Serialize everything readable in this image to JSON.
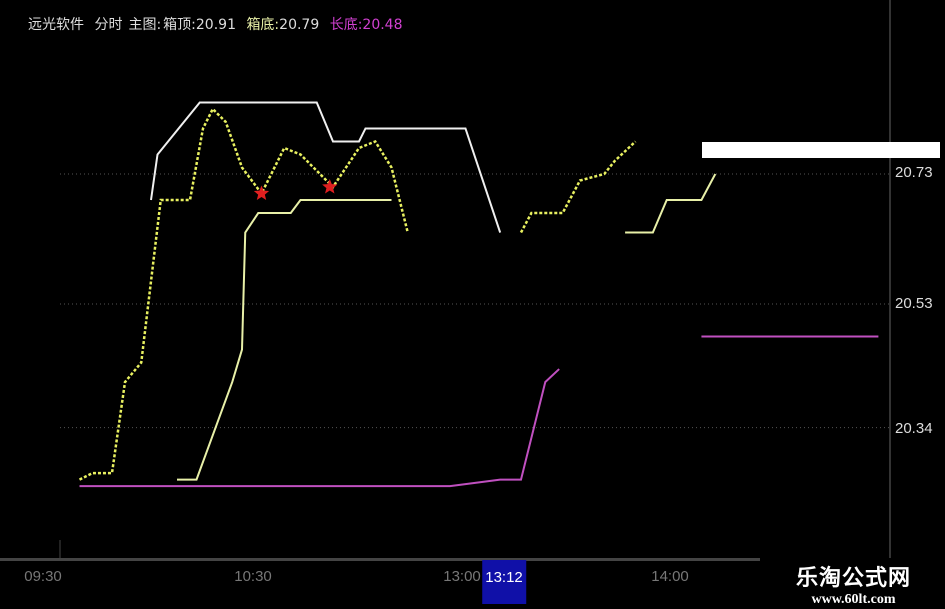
{
  "header": {
    "software": "远光软件",
    "mode": "分时",
    "main_chart_label": "主图:",
    "box_top_label": "箱顶:",
    "box_top_value": "20.91",
    "box_bottom_label": "箱底:",
    "box_bottom_value": "20.79",
    "long_bottom_label": "长底:",
    "long_bottom_value": "20.48"
  },
  "colors": {
    "background": "#000000",
    "box_top": "#f0f0f0",
    "box_bottom": "#e8f0a8",
    "long_bottom": "#c050c0",
    "price": "#e8f060",
    "signal_star": "#e02020",
    "cursor_time_bg": "#1010a8"
  },
  "watermark": {
    "title": "乐淘公式网",
    "url": "www.60lt.com"
  },
  "chart_data": {
    "type": "line",
    "title": "",
    "y_ticks": [
      "20.73",
      "20.53",
      "20.34"
    ],
    "x_ticks": [
      "09:30",
      "10:30",
      "13:00",
      "14:00"
    ],
    "cursor_time": "13:12",
    "grid": "dotted horizontal",
    "series": [
      {
        "name": "箱顶",
        "color": "#f0f0f0",
        "segments": [
          [
            [
              "09:58",
              20.69
            ],
            [
              "10:00",
              20.76
            ],
            [
              "10:13",
              20.84
            ],
            [
              "10:49",
              20.84
            ],
            [
              "10:54",
              20.78
            ],
            [
              "11:02",
              20.78
            ],
            [
              "11:04",
              20.8
            ],
            [
              "11:30",
              20.8
            ],
            [
              "13:01",
              20.8
            ],
            [
              "13:11",
              20.64
            ]
          ]
        ]
      },
      {
        "name": "箱底",
        "color": "#e8f0a8",
        "segments": [
          [
            [
              "10:06",
              20.26
            ],
            [
              "10:12",
              20.26
            ],
            [
              "10:23",
              20.41
            ],
            [
              "10:26",
              20.46
            ],
            [
              "10:27",
              20.64
            ],
            [
              "10:31",
              20.67
            ],
            [
              "10:41",
              20.67
            ],
            [
              "10:44",
              20.69
            ],
            [
              "11:12",
              20.69
            ]
          ],
          [
            [
              "13:47",
              20.64
            ],
            [
              "13:55",
              20.64
            ],
            [
              "13:59",
              20.69
            ],
            [
              "14:09",
              20.69
            ],
            [
              "14:13",
              20.73
            ]
          ]
        ]
      },
      {
        "name": "长底",
        "color": "#c050c0",
        "segments": [
          [
            [
              "09:36",
              20.25
            ],
            [
              "11:30",
              20.25
            ],
            [
              "13:11",
              20.26
            ],
            [
              "13:17",
              20.26
            ],
            [
              "13:24",
              20.41
            ],
            [
              "13:28",
              20.43
            ]
          ],
          [
            [
              "14:09",
              20.48
            ],
            [
              "15:00",
              20.48
            ]
          ]
        ]
      },
      {
        "name": "",
        "color": "#e8f060",
        "dotted": true,
        "segments": [
          [
            [
              "09:36",
              20.26
            ],
            [
              "09:40",
              20.27
            ],
            [
              "09:46",
              20.27
            ],
            [
              "09:50",
              20.41
            ],
            [
              "09:55",
              20.44
            ],
            [
              "10:01",
              20.69
            ],
            [
              "10:10",
              20.69
            ],
            [
              "10:14",
              20.8
            ],
            [
              "10:17",
              20.83
            ],
            [
              "10:21",
              20.81
            ],
            [
              "10:26",
              20.74
            ],
            [
              "10:32",
              20.7
            ],
            [
              "10:39",
              20.77
            ],
            [
              "10:44",
              20.76
            ],
            [
              "10:54",
              20.71
            ],
            [
              "11:02",
              20.77
            ],
            [
              "11:07",
              20.78
            ],
            [
              "11:12",
              20.74
            ],
            [
              "11:17",
              20.64
            ]
          ],
          [
            [
              "13:17",
              20.64
            ],
            [
              "13:20",
              20.67
            ],
            [
              "13:29",
              20.67
            ],
            [
              "13:34",
              20.72
            ],
            [
              "13:41",
              20.73
            ],
            [
              "13:44",
              20.75
            ],
            [
              "13:50",
              20.78
            ]
          ]
        ]
      }
    ],
    "signals": [
      [
        "10:32",
        20.7
      ],
      [
        "10:53",
        20.71
      ]
    ]
  }
}
